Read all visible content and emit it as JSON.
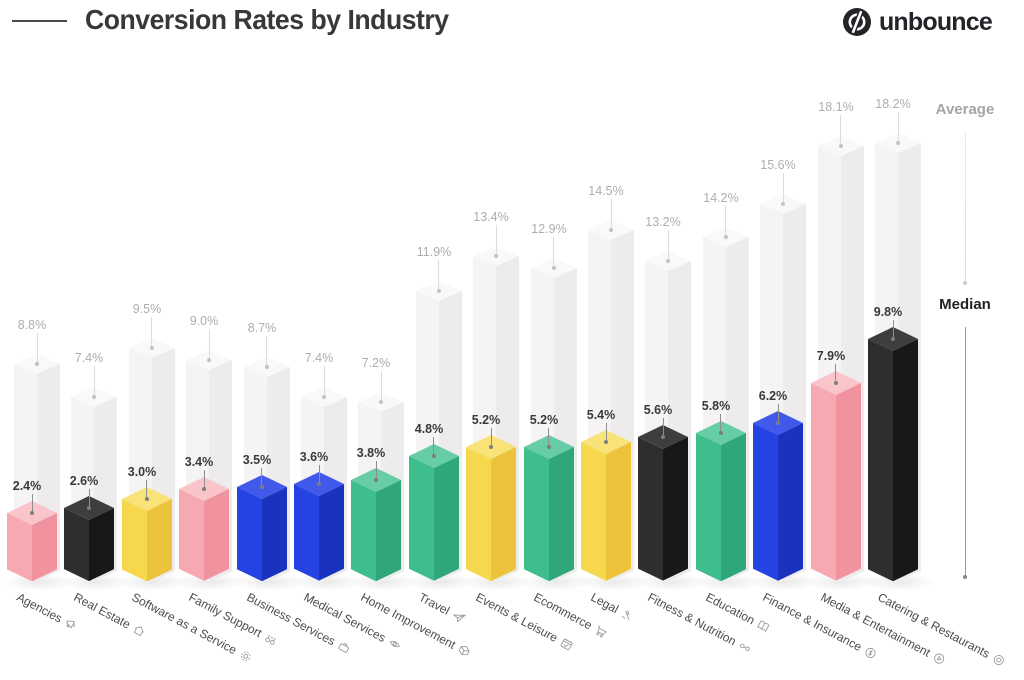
{
  "header": {
    "title": "Conversion Rates by Industry",
    "brand": "unbounce"
  },
  "legend": {
    "average_label": "Average",
    "median_label": "Median"
  },
  "colors": {
    "accent_title": "#383838",
    "average_text": "#adadad",
    "median_text": "#3a3a3a",
    "average_line": "#dcdcdc",
    "median_line": "#8e8e8e",
    "average_dot": "#c2c2c2",
    "median_dot": "#7e7e7e",
    "label_text": "#4c4c4c",
    "icon_stroke": "#9b9b9b",
    "pink": {
      "left": "#F7A9B1",
      "right": "#F0939E",
      "top": "#FAC5CA"
    },
    "black": {
      "left": "#2E2E2E",
      "right": "#181818",
      "top": "#3E3E3E"
    },
    "yellow": {
      "left": "#F6D84E",
      "right": "#EDC33C",
      "top": "#F9E378"
    },
    "blue": {
      "left": "#2443E2",
      "right": "#1A33BE",
      "top": "#4159EA"
    },
    "green": {
      "left": "#3EBE8D",
      "right": "#2FA77A",
      "top": "#67CDA6"
    },
    "gray": {
      "left": "#F5F3F3",
      "right": "#EDEBEB",
      "top": "#FAF9F9"
    }
  },
  "chart_data": {
    "type": "bar",
    "title": "Conversion Rates by Industry",
    "series_names": [
      "Average",
      "Median"
    ],
    "value_suffix": "%",
    "legend_position": "right",
    "grid": false,
    "industries": [
      {
        "name": "Agencies",
        "icon": "megaphone-icon",
        "average": 8.8,
        "median": 2.4,
        "color": "pink"
      },
      {
        "name": "Real Estate",
        "icon": "home-icon",
        "average": 7.4,
        "median": 2.6,
        "color": "black"
      },
      {
        "name": "Software as a Service",
        "icon": "gear-icon",
        "average": 9.5,
        "median": 3.0,
        "color": "yellow"
      },
      {
        "name": "Family Support",
        "icon": "binoculars-icon",
        "average": 9.0,
        "median": 3.4,
        "color": "pink"
      },
      {
        "name": "Business Services",
        "icon": "briefcase-icon",
        "average": 8.7,
        "median": 3.5,
        "color": "blue"
      },
      {
        "name": "Medical Services",
        "icon": "eye-icon",
        "average": 7.4,
        "median": 3.6,
        "color": "blue"
      },
      {
        "name": "Home Improvement",
        "icon": "package-icon",
        "average": 7.2,
        "median": 3.8,
        "color": "green"
      },
      {
        "name": "Travel",
        "icon": "plane-icon",
        "average": 11.9,
        "median": 4.8,
        "color": "green"
      },
      {
        "name": "Events & Leisure",
        "icon": "calendar-check-icon",
        "average": 13.4,
        "median": 5.2,
        "color": "yellow"
      },
      {
        "name": "Ecommerce",
        "icon": "cart-icon",
        "average": 12.9,
        "median": 5.2,
        "color": "green"
      },
      {
        "name": "Legal",
        "icon": "gavel-icon",
        "average": 14.5,
        "median": 5.4,
        "color": "yellow"
      },
      {
        "name": "Fitness & Nutrition",
        "icon": "dumbbell-icon",
        "average": 13.2,
        "median": 5.6,
        "color": "black"
      },
      {
        "name": "Education",
        "icon": "book-icon",
        "average": 14.2,
        "median": 5.8,
        "color": "green"
      },
      {
        "name": "Finance & Insurance",
        "icon": "dollar-circle-icon",
        "average": 15.6,
        "median": 6.2,
        "color": "blue"
      },
      {
        "name": "Media & Entertainment",
        "icon": "play-circle-icon",
        "average": 18.1,
        "median": 7.9,
        "color": "pink"
      },
      {
        "name": "Catering & Restaurants",
        "icon": "plate-icon",
        "average": 18.2,
        "median": 9.8,
        "color": "black"
      }
    ]
  }
}
